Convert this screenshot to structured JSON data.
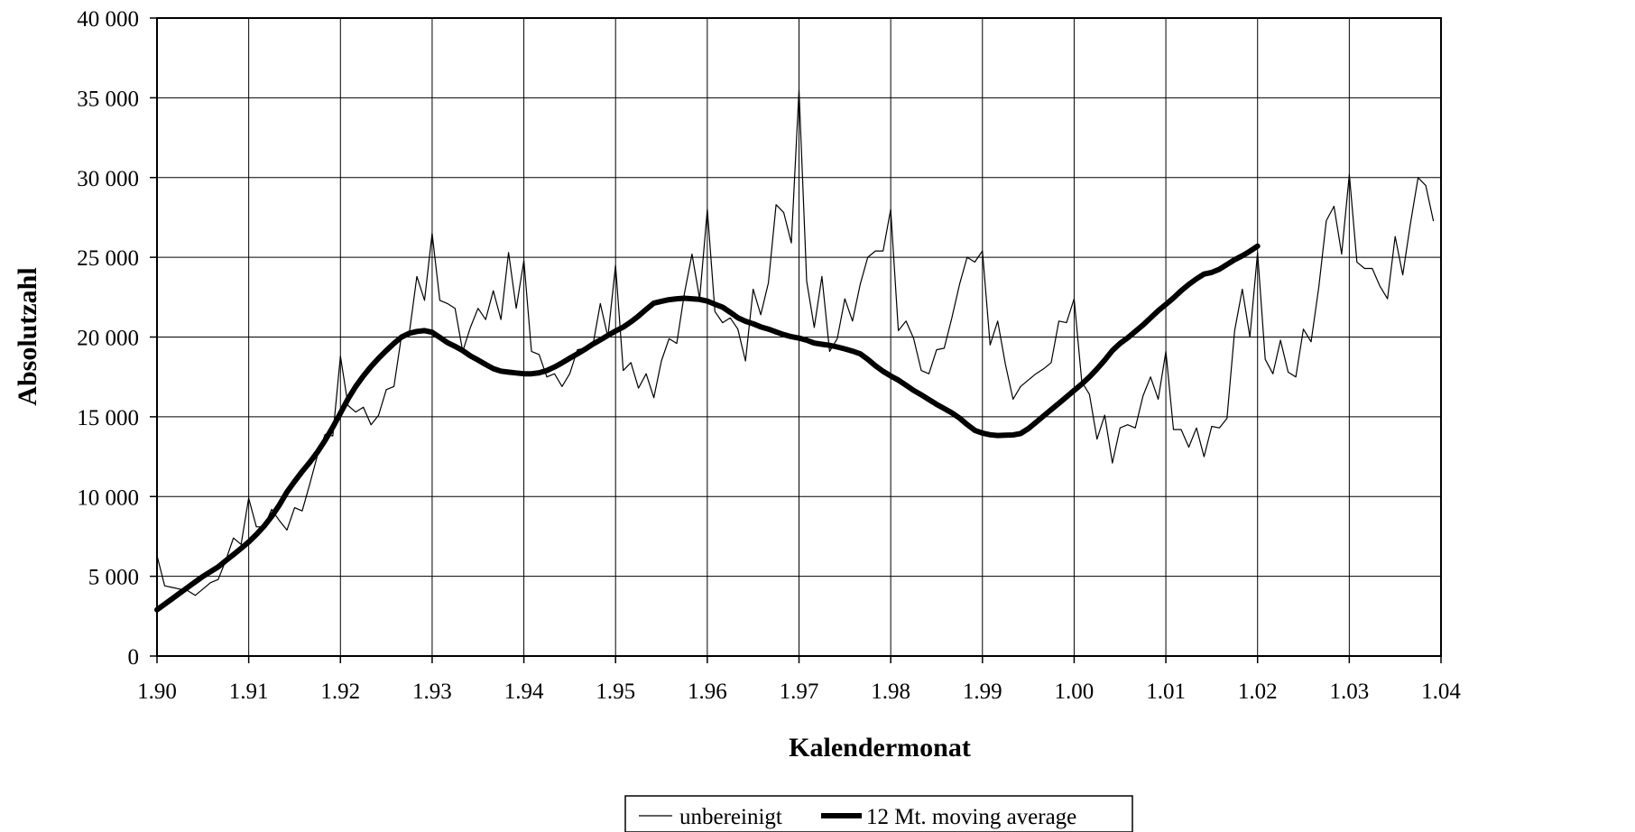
{
  "chart_data": {
    "type": "line",
    "xlabel": "Kalendermonat",
    "ylabel": "Absolutzahl",
    "ylim": [
      0,
      40000
    ],
    "y_ticks": [
      0,
      5000,
      10000,
      15000,
      20000,
      25000,
      30000,
      35000,
      40000
    ],
    "y_tick_labels": [
      "0",
      "5 000",
      "10 000",
      "15 000",
      "20 000",
      "25 000",
      "30 000",
      "35 000",
      "40 000"
    ],
    "x_tick_labels": [
      "1.90",
      "1.91",
      "1.92",
      "1.93",
      "1.94",
      "1.95",
      "1.96",
      "1.97",
      "1.98",
      "1.99",
      "1.00",
      "1.01",
      "1.02",
      "1.03",
      "1.04"
    ],
    "x_unit": "months from 1.90",
    "xlim": [
      0,
      168
    ],
    "grid": true,
    "legend_position": "bottom-center",
    "series": [
      {
        "name": "unbereinigt",
        "style": "thin",
        "color": "#000000",
        "values": [
          6300,
          4400,
          4300,
          4200,
          4100,
          3800,
          4200,
          4600,
          4800,
          6000,
          7400,
          7000,
          9900,
          8100,
          8100,
          9200,
          8500,
          7900,
          9300,
          9100,
          10800,
          12600,
          13900,
          13800,
          18800,
          15700,
          15300,
          15600,
          14500,
          15100,
          16700,
          16900,
          20100,
          20200,
          23800,
          22300,
          26500,
          22300,
          22100,
          21800,
          19100,
          20600,
          21800,
          21100,
          22900,
          21100,
          25300,
          21800,
          24800,
          19100,
          18900,
          17500,
          17700,
          16900,
          17700,
          19200,
          19300,
          19400,
          22100,
          20000,
          24500,
          17900,
          18400,
          16800,
          17700,
          16200,
          18500,
          19900,
          19600,
          22700,
          25200,
          22400,
          28000,
          21600,
          20900,
          21200,
          20500,
          18500,
          23000,
          21400,
          23400,
          28300,
          27800,
          25900,
          35500,
          23500,
          20600,
          23800,
          19100,
          19900,
          22400,
          21000,
          23300,
          25000,
          25400,
          25400,
          28000,
          20400,
          21000,
          19900,
          17900,
          17700,
          19200,
          19300,
          21200,
          23300,
          25000,
          24700,
          25400,
          19500,
          21000,
          18300,
          16100,
          16900,
          17300,
          17700,
          18000,
          18400,
          21000,
          20900,
          22400,
          17200,
          16400,
          13600,
          15100,
          12100,
          14300,
          14500,
          14300,
          16300,
          17500,
          16100,
          19100,
          14200,
          14200,
          13100,
          14300,
          12500,
          14400,
          14300,
          14900,
          20400,
          23000,
          20000,
          25300,
          18600,
          17700,
          19800,
          17800,
          17500,
          20500,
          19700,
          23100,
          27300,
          28200,
          25200,
          30200,
          24700,
          24300,
          24300,
          23200,
          22400,
          26300,
          23900,
          27100,
          30000,
          29500,
          27300
        ]
      },
      {
        "name": "12 Mt. moving average",
        "style": "thick",
        "color": "#000000",
        "values": [
          2900,
          3250,
          3600,
          3950,
          4300,
          4650,
          4990,
          5290,
          5590,
          5980,
          6360,
          6750,
          7150,
          7620,
          8140,
          8750,
          9460,
          10280,
          10950,
          11570,
          12150,
          12800,
          13520,
          14350,
          15230,
          16130,
          16900,
          17560,
          18150,
          18670,
          19150,
          19600,
          20000,
          20230,
          20350,
          20400,
          20300,
          19980,
          19650,
          19420,
          19150,
          18820,
          18560,
          18280,
          18020,
          17860,
          17800,
          17750,
          17700,
          17700,
          17760,
          17900,
          18120,
          18380,
          18670,
          18950,
          19230,
          19550,
          19820,
          20100,
          20380,
          20620,
          20950,
          21320,
          21730,
          22130,
          22240,
          22340,
          22400,
          22430,
          22400,
          22360,
          22250,
          22060,
          21870,
          21550,
          21210,
          20990,
          20830,
          20640,
          20500,
          20320,
          20150,
          20020,
          19930,
          19800,
          19620,
          19550,
          19480,
          19380,
          19260,
          19120,
          18950,
          18600,
          18200,
          17850,
          17560,
          17300,
          16980,
          16650,
          16380,
          16080,
          15780,
          15520,
          15250,
          14920,
          14520,
          14150,
          13980,
          13870,
          13830,
          13850,
          13860,
          13950,
          14250,
          14650,
          15050,
          15450,
          15850,
          16250,
          16650,
          17050,
          17500,
          18000,
          18550,
          19150,
          19600,
          19950,
          20350,
          20750,
          21200,
          21650,
          22050,
          22450,
          22900,
          23300,
          23650,
          23950,
          24050,
          24250,
          24550,
          24850,
          25100,
          25380,
          25700
        ]
      }
    ]
  }
}
